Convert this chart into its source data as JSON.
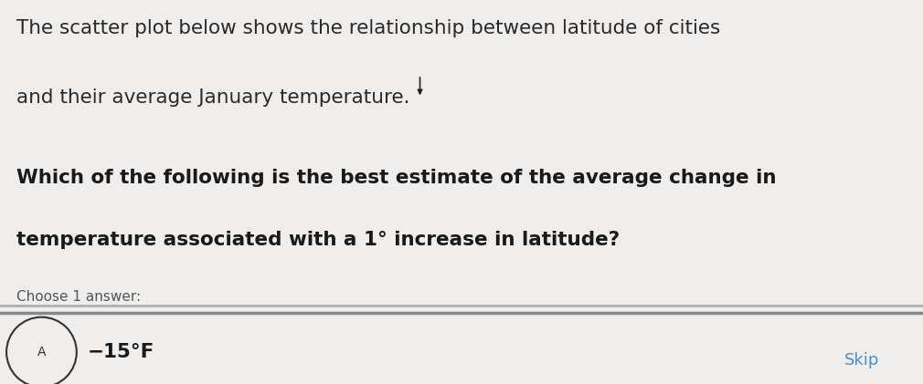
{
  "background_color": "#f0eeec",
  "line1": "The scatter plot below shows the relationship between latitude of cities",
  "line2": "and their average January temperature.",
  "question_line1": "Which of the following is the best estimate of the average change in",
  "question_line2": "temperature associated with a 1° increase in latitude?",
  "choose_label": "Choose 1 answer:",
  "answer_text": "−15°F",
  "skip_label": "Skip",
  "answer_circle_label": "A",
  "text_color_normal": "#2a2a2a",
  "text_color_question": "#1a1a1a",
  "text_color_choose": "#555555",
  "skip_color": "#4a90c4",
  "divider_color_top": "#b0b0b0",
  "divider_color_bottom": "#888888"
}
